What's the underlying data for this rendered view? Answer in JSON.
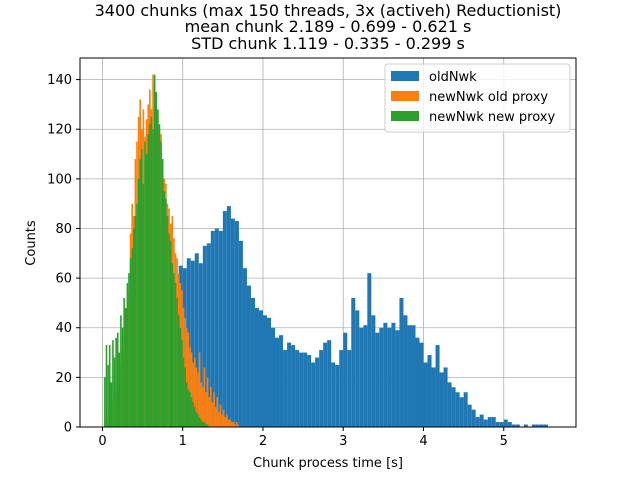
{
  "chart_data": {
    "type": "bar",
    "title_lines": [
      "3400 chunks (max 150 threads, 3x (activeh) Reductionist)",
      "mean chunk 2.189 - 0.699 - 0.621 s",
      "STD chunk 1.119 - 0.335 - 0.299 s"
    ],
    "xlabel": "Chunk process time [s]",
    "ylabel": "Counts",
    "xlim": [
      -0.28,
      5.9
    ],
    "ylim": [
      0,
      148.7
    ],
    "xticks": [
      0,
      1,
      2,
      3,
      4,
      5
    ],
    "yticks": [
      0,
      20,
      40,
      60,
      80,
      100,
      120,
      140
    ],
    "grid": true,
    "legend_position": "upper right",
    "series": [
      {
        "name": "oldNwk",
        "color": "#1f77b4",
        "bins": [
          [
            0.95,
            1.0,
            65
          ],
          [
            1.0,
            1.05,
            64
          ],
          [
            1.05,
            1.1,
            68
          ],
          [
            1.1,
            1.15,
            67
          ],
          [
            1.15,
            1.2,
            70
          ],
          [
            1.2,
            1.25,
            66
          ],
          [
            1.25,
            1.3,
            73
          ],
          [
            1.3,
            1.35,
            74
          ],
          [
            1.35,
            1.4,
            79
          ],
          [
            1.4,
            1.45,
            80
          ],
          [
            1.45,
            1.5,
            79
          ],
          [
            1.5,
            1.55,
            87
          ],
          [
            1.55,
            1.6,
            89
          ],
          [
            1.6,
            1.65,
            84
          ],
          [
            1.65,
            1.7,
            83
          ],
          [
            1.7,
            1.75,
            75
          ],
          [
            1.75,
            1.8,
            64
          ],
          [
            1.8,
            1.85,
            57
          ],
          [
            1.85,
            1.9,
            52
          ],
          [
            1.9,
            1.95,
            48
          ],
          [
            1.95,
            2.0,
            47
          ],
          [
            2.0,
            2.05,
            45
          ],
          [
            2.05,
            2.1,
            44
          ],
          [
            2.1,
            2.15,
            40
          ],
          [
            2.15,
            2.2,
            36
          ],
          [
            2.2,
            2.25,
            37
          ],
          [
            2.25,
            2.3,
            31
          ],
          [
            2.3,
            2.35,
            34
          ],
          [
            2.35,
            2.4,
            33
          ],
          [
            2.4,
            2.45,
            31
          ],
          [
            2.45,
            2.5,
            30
          ],
          [
            2.5,
            2.55,
            30
          ],
          [
            2.55,
            2.6,
            29
          ],
          [
            2.6,
            2.65,
            26
          ],
          [
            2.65,
            2.7,
            28
          ],
          [
            2.7,
            2.75,
            31
          ],
          [
            2.75,
            2.8,
            34
          ],
          [
            2.8,
            2.85,
            35
          ],
          [
            2.85,
            2.9,
            26
          ],
          [
            2.9,
            2.95,
            25
          ],
          [
            2.95,
            3.0,
            31
          ],
          [
            3.0,
            3.05,
            38
          ],
          [
            3.05,
            3.1,
            31
          ],
          [
            3.1,
            3.15,
            52
          ],
          [
            3.15,
            3.2,
            47
          ],
          [
            3.2,
            3.25,
            40
          ],
          [
            3.25,
            3.3,
            41
          ],
          [
            3.3,
            3.35,
            62
          ],
          [
            3.35,
            3.4,
            45
          ],
          [
            3.4,
            3.45,
            38
          ],
          [
            3.45,
            3.5,
            40
          ],
          [
            3.5,
            3.55,
            42
          ],
          [
            3.55,
            3.6,
            40
          ],
          [
            3.6,
            3.65,
            42
          ],
          [
            3.65,
            3.7,
            39
          ],
          [
            3.7,
            3.75,
            52
          ],
          [
            3.75,
            3.8,
            45
          ],
          [
            3.8,
            3.85,
            41
          ],
          [
            3.85,
            3.9,
            41
          ],
          [
            3.9,
            3.95,
            36
          ],
          [
            3.95,
            4.0,
            34
          ],
          [
            4.0,
            4.05,
            26
          ],
          [
            4.05,
            4.1,
            29
          ],
          [
            4.1,
            4.15,
            24
          ],
          [
            4.15,
            4.2,
            33
          ],
          [
            4.2,
            4.25,
            22
          ],
          [
            4.25,
            4.3,
            24
          ],
          [
            4.3,
            4.35,
            18
          ],
          [
            4.35,
            4.4,
            16
          ],
          [
            4.4,
            4.45,
            14
          ],
          [
            4.45,
            4.5,
            12
          ],
          [
            4.5,
            4.55,
            14
          ],
          [
            4.55,
            4.6,
            9
          ],
          [
            4.6,
            4.65,
            7
          ],
          [
            4.65,
            4.7,
            4
          ],
          [
            4.7,
            4.75,
            5
          ],
          [
            4.75,
            4.8,
            3
          ],
          [
            4.8,
            4.85,
            4
          ],
          [
            4.85,
            4.9,
            4
          ],
          [
            4.9,
            4.95,
            2
          ],
          [
            4.95,
            5.0,
            2
          ],
          [
            5.0,
            5.05,
            3
          ],
          [
            5.05,
            5.1,
            2
          ],
          [
            5.1,
            5.15,
            1
          ],
          [
            5.15,
            5.2,
            1
          ],
          [
            5.2,
            5.25,
            0
          ],
          [
            5.25,
            5.3,
            1
          ],
          [
            5.3,
            5.35,
            0
          ],
          [
            5.35,
            5.4,
            1
          ],
          [
            5.4,
            5.45,
            1
          ],
          [
            5.45,
            5.5,
            1
          ],
          [
            5.5,
            5.55,
            1
          ]
        ]
      },
      {
        "name": "newNwk old proxy",
        "color": "#ff7f0e",
        "bins": [
          [
            0.02,
            0.04,
            3
          ],
          [
            0.04,
            0.06,
            2
          ],
          [
            0.06,
            0.08,
            5
          ],
          [
            0.08,
            0.1,
            8
          ],
          [
            0.1,
            0.12,
            12
          ],
          [
            0.12,
            0.14,
            10
          ],
          [
            0.14,
            0.16,
            18
          ],
          [
            0.16,
            0.18,
            14
          ],
          [
            0.18,
            0.2,
            22
          ],
          [
            0.2,
            0.22,
            20
          ],
          [
            0.22,
            0.24,
            26
          ],
          [
            0.24,
            0.26,
            32
          ],
          [
            0.26,
            0.28,
            38
          ],
          [
            0.28,
            0.3,
            35
          ],
          [
            0.3,
            0.32,
            48
          ],
          [
            0.32,
            0.34,
            55
          ],
          [
            0.34,
            0.36,
            78
          ],
          [
            0.36,
            0.38,
            90
          ],
          [
            0.38,
            0.4,
            85
          ],
          [
            0.4,
            0.42,
            108
          ],
          [
            0.42,
            0.44,
            115
          ],
          [
            0.44,
            0.46,
            125
          ],
          [
            0.46,
            0.48,
            132
          ],
          [
            0.48,
            0.5,
            120
          ],
          [
            0.5,
            0.52,
            128
          ],
          [
            0.52,
            0.54,
            117
          ],
          [
            0.54,
            0.56,
            124
          ],
          [
            0.56,
            0.58,
            130
          ],
          [
            0.58,
            0.6,
            136
          ],
          [
            0.6,
            0.62,
            128
          ],
          [
            0.62,
            0.64,
            142
          ],
          [
            0.64,
            0.66,
            138
          ],
          [
            0.66,
            0.68,
            130
          ],
          [
            0.68,
            0.7,
            125
          ],
          [
            0.7,
            0.72,
            120
          ],
          [
            0.72,
            0.74,
            118
          ],
          [
            0.74,
            0.76,
            108
          ],
          [
            0.76,
            0.78,
            100
          ],
          [
            0.78,
            0.8,
            98
          ],
          [
            0.8,
            0.82,
            90
          ],
          [
            0.82,
            0.84,
            88
          ],
          [
            0.84,
            0.86,
            82
          ],
          [
            0.86,
            0.88,
            85
          ],
          [
            0.88,
            0.9,
            76
          ],
          [
            0.9,
            0.92,
            70
          ],
          [
            0.92,
            0.94,
            68
          ],
          [
            0.94,
            0.96,
            62
          ],
          [
            0.96,
            0.98,
            58
          ],
          [
            0.98,
            1.0,
            55
          ],
          [
            1.0,
            1.02,
            48
          ],
          [
            1.02,
            1.04,
            44
          ],
          [
            1.04,
            1.06,
            40
          ],
          [
            1.06,
            1.08,
            38
          ],
          [
            1.08,
            1.1,
            32
          ],
          [
            1.1,
            1.12,
            30
          ],
          [
            1.12,
            1.14,
            26
          ],
          [
            1.14,
            1.16,
            28
          ],
          [
            1.16,
            1.18,
            24
          ],
          [
            1.18,
            1.2,
            22
          ],
          [
            1.2,
            1.22,
            30
          ],
          [
            1.22,
            1.24,
            18
          ],
          [
            1.24,
            1.26,
            16
          ],
          [
            1.26,
            1.28,
            24
          ],
          [
            1.28,
            1.3,
            14
          ],
          [
            1.3,
            1.32,
            20
          ],
          [
            1.32,
            1.34,
            12
          ],
          [
            1.34,
            1.36,
            16
          ],
          [
            1.36,
            1.38,
            10
          ],
          [
            1.38,
            1.4,
            14
          ],
          [
            1.4,
            1.42,
            8
          ],
          [
            1.42,
            1.44,
            12
          ],
          [
            1.44,
            1.46,
            6
          ],
          [
            1.46,
            1.48,
            9
          ],
          [
            1.48,
            1.5,
            5
          ],
          [
            1.5,
            1.52,
            7
          ],
          [
            1.52,
            1.54,
            4
          ],
          [
            1.54,
            1.56,
            5
          ],
          [
            1.56,
            1.58,
            3
          ],
          [
            1.58,
            1.6,
            3
          ],
          [
            1.6,
            1.62,
            2
          ],
          [
            1.62,
            1.64,
            2
          ],
          [
            1.64,
            1.66,
            1
          ],
          [
            1.66,
            1.68,
            2
          ],
          [
            1.68,
            1.7,
            1
          ]
        ]
      },
      {
        "name": "newNwk new proxy",
        "color": "#2ca02c",
        "bins": [
          [
            0.02,
            0.04,
            20
          ],
          [
            0.04,
            0.06,
            33
          ],
          [
            0.06,
            0.08,
            25
          ],
          [
            0.08,
            0.1,
            33
          ],
          [
            0.1,
            0.12,
            18
          ],
          [
            0.12,
            0.14,
            35
          ],
          [
            0.14,
            0.16,
            28
          ],
          [
            0.16,
            0.18,
            36
          ],
          [
            0.18,
            0.2,
            38
          ],
          [
            0.2,
            0.22,
            30
          ],
          [
            0.22,
            0.24,
            45
          ],
          [
            0.24,
            0.26,
            40
          ],
          [
            0.26,
            0.28,
            52
          ],
          [
            0.28,
            0.3,
            48
          ],
          [
            0.3,
            0.32,
            58
          ],
          [
            0.32,
            0.34,
            62
          ],
          [
            0.34,
            0.36,
            68
          ],
          [
            0.36,
            0.38,
            72
          ],
          [
            0.38,
            0.4,
            80
          ],
          [
            0.4,
            0.42,
            85
          ],
          [
            0.42,
            0.44,
            90
          ],
          [
            0.44,
            0.46,
            100
          ],
          [
            0.46,
            0.48,
            108
          ],
          [
            0.48,
            0.5,
            112
          ],
          [
            0.5,
            0.52,
            98
          ],
          [
            0.52,
            0.54,
            115
          ],
          [
            0.54,
            0.56,
            110
          ],
          [
            0.56,
            0.58,
            118
          ],
          [
            0.58,
            0.6,
            122
          ],
          [
            0.6,
            0.62,
            125
          ],
          [
            0.62,
            0.64,
            120
          ],
          [
            0.64,
            0.66,
            142
          ],
          [
            0.66,
            0.68,
            135
          ],
          [
            0.68,
            0.7,
            128
          ],
          [
            0.7,
            0.72,
            122
          ],
          [
            0.72,
            0.74,
            115
          ],
          [
            0.74,
            0.76,
            108
          ],
          [
            0.76,
            0.78,
            95
          ],
          [
            0.78,
            0.8,
            92
          ],
          [
            0.8,
            0.82,
            85
          ],
          [
            0.82,
            0.84,
            78
          ],
          [
            0.84,
            0.86,
            75
          ],
          [
            0.86,
            0.88,
            66
          ],
          [
            0.88,
            0.9,
            62
          ],
          [
            0.9,
            0.92,
            58
          ],
          [
            0.92,
            0.94,
            52
          ],
          [
            0.94,
            0.96,
            45
          ],
          [
            0.96,
            0.98,
            40
          ],
          [
            0.98,
            1.0,
            35
          ],
          [
            1.0,
            1.02,
            28
          ],
          [
            1.02,
            1.04,
            24
          ],
          [
            1.04,
            1.06,
            18
          ],
          [
            1.06,
            1.08,
            15
          ],
          [
            1.08,
            1.1,
            14
          ],
          [
            1.1,
            1.12,
            12
          ],
          [
            1.12,
            1.14,
            10
          ],
          [
            1.14,
            1.16,
            8
          ],
          [
            1.16,
            1.18,
            6
          ],
          [
            1.18,
            1.2,
            5
          ],
          [
            1.2,
            1.22,
            4
          ],
          [
            1.22,
            1.24,
            3
          ],
          [
            1.24,
            1.26,
            2
          ],
          [
            1.26,
            1.28,
            2
          ],
          [
            1.28,
            1.3,
            1
          ],
          [
            1.3,
            1.32,
            1
          ]
        ]
      }
    ]
  }
}
